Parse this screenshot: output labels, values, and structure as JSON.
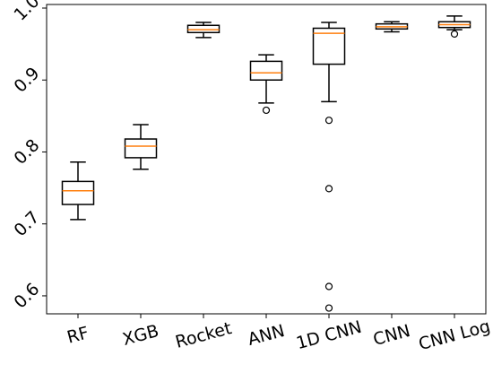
{
  "chart_data": {
    "type": "box",
    "title": "",
    "xlabel": "",
    "ylabel": "",
    "categories": [
      "RF",
      "XGB",
      "Rocket",
      "ANN",
      "1D CNN",
      "CNN",
      "CNN Log"
    ],
    "ylim": [
      0.575,
      1.005
    ],
    "yticks": [
      0.6,
      0.7,
      0.8,
      0.9,
      1.0
    ],
    "ytick_labels": [
      "0.6",
      "0.7",
      "0.8",
      "0.9",
      "1.0"
    ],
    "grid": false,
    "boxes": [
      {
        "label": "RF",
        "whisker_low": 0.706,
        "q1": 0.727,
        "median": 0.746,
        "q3": 0.759,
        "whisker_high": 0.786,
        "outliers": []
      },
      {
        "label": "XGB",
        "whisker_low": 0.776,
        "q1": 0.792,
        "median": 0.808,
        "q3": 0.818,
        "whisker_high": 0.838,
        "outliers": []
      },
      {
        "label": "Rocket",
        "whisker_low": 0.959,
        "q1": 0.966,
        "median": 0.97,
        "q3": 0.976,
        "whisker_high": 0.98,
        "outliers": []
      },
      {
        "label": "ANN",
        "whisker_low": 0.868,
        "q1": 0.9,
        "median": 0.91,
        "q3": 0.926,
        "whisker_high": 0.935,
        "outliers": [
          0.858
        ]
      },
      {
        "label": "1D CNN",
        "whisker_low": 0.87,
        "q1": 0.922,
        "median": 0.965,
        "q3": 0.972,
        "whisker_high": 0.98,
        "outliers": [
          0.844,
          0.749,
          0.613,
          0.583
        ]
      },
      {
        "label": "CNN",
        "whisker_low": 0.967,
        "q1": 0.971,
        "median": 0.974,
        "q3": 0.978,
        "whisker_high": 0.981,
        "outliers": []
      },
      {
        "label": "CNN Log",
        "whisker_low": 0.97,
        "q1": 0.973,
        "median": 0.977,
        "q3": 0.981,
        "whisker_high": 0.989,
        "outliers": [
          0.964
        ]
      }
    ],
    "colors": {
      "box": "#000000",
      "median": "#ff7f0e",
      "axes": "#000000"
    }
  }
}
